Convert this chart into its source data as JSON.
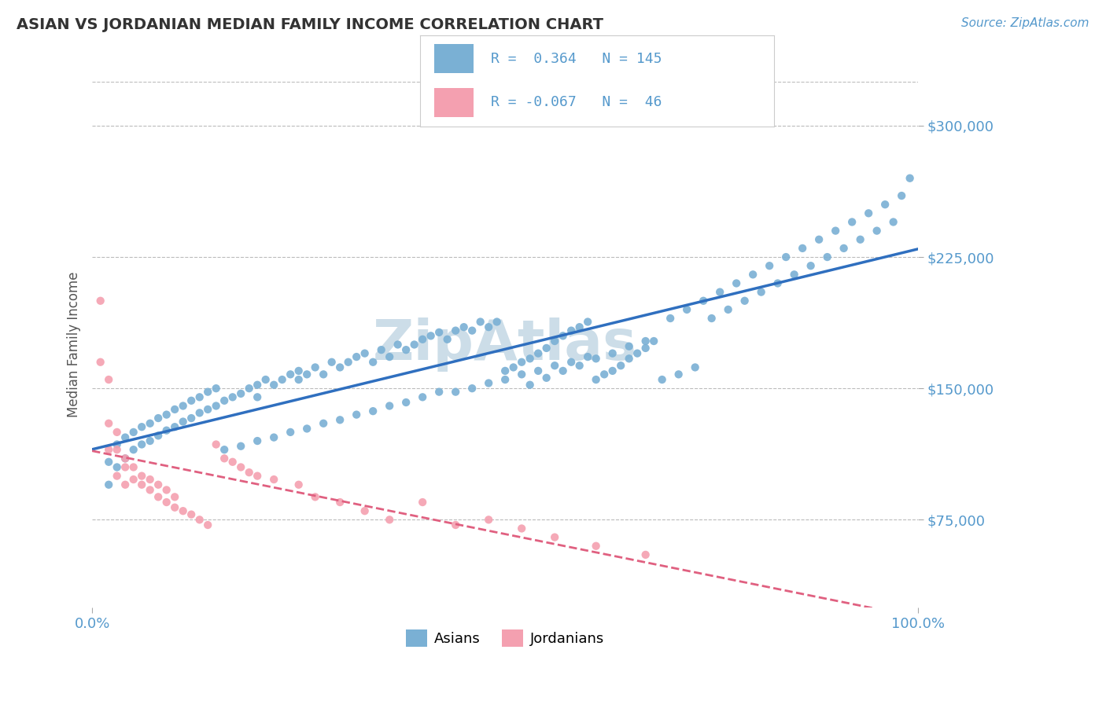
{
  "title": "ASIAN VS JORDANIAN MEDIAN FAMILY INCOME CORRELATION CHART",
  "source_text": "Source: ZipAtlas.com",
  "ylabel": "Median Family Income",
  "xlim": [
    0.0,
    1.0
  ],
  "ylim": [
    25000,
    325000
  ],
  "x_tick_labels": [
    "0.0%",
    "100.0%"
  ],
  "y_tick_labels": [
    "$75,000",
    "$150,000",
    "$225,000",
    "$300,000"
  ],
  "y_tick_values": [
    75000,
    150000,
    225000,
    300000
  ],
  "asian_R": 0.364,
  "asian_N": 145,
  "jordanian_R": -0.067,
  "jordanian_N": 46,
  "asian_color": "#7ab0d4",
  "asian_line_color": "#2f6fbf",
  "jordanian_color": "#f4a0b0",
  "jordanian_line_color": "#e06080",
  "background_color": "#ffffff",
  "grid_color": "#bbbbbb",
  "title_color": "#333333",
  "axis_label_color": "#5599cc",
  "watermark_text": "ZipAtlas",
  "watermark_color": "#ccdde8",
  "asian_scatter_x": [
    0.02,
    0.02,
    0.03,
    0.03,
    0.04,
    0.04,
    0.05,
    0.05,
    0.06,
    0.06,
    0.07,
    0.07,
    0.08,
    0.08,
    0.09,
    0.09,
    0.1,
    0.1,
    0.11,
    0.11,
    0.12,
    0.12,
    0.13,
    0.13,
    0.14,
    0.14,
    0.15,
    0.15,
    0.16,
    0.17,
    0.18,
    0.19,
    0.2,
    0.2,
    0.21,
    0.22,
    0.23,
    0.24,
    0.25,
    0.25,
    0.26,
    0.27,
    0.28,
    0.29,
    0.3,
    0.31,
    0.32,
    0.33,
    0.34,
    0.35,
    0.36,
    0.37,
    0.38,
    0.39,
    0.4,
    0.41,
    0.42,
    0.43,
    0.44,
    0.45,
    0.46,
    0.47,
    0.48,
    0.49,
    0.5,
    0.51,
    0.52,
    0.53,
    0.54,
    0.55,
    0.56,
    0.57,
    0.58,
    0.59,
    0.6,
    0.61,
    0.62,
    0.63,
    0.64,
    0.65,
    0.66,
    0.67,
    0.68,
    0.7,
    0.72,
    0.74,
    0.76,
    0.78,
    0.8,
    0.82,
    0.84,
    0.86,
    0.88,
    0.9,
    0.92,
    0.94,
    0.96,
    0.98,
    0.75,
    0.77,
    0.79,
    0.81,
    0.83,
    0.85,
    0.87,
    0.89,
    0.91,
    0.93,
    0.95,
    0.97,
    0.99,
    0.53,
    0.55,
    0.57,
    0.59,
    0.61,
    0.63,
    0.65,
    0.67,
    0.69,
    0.71,
    0.73,
    0.48,
    0.5,
    0.52,
    0.54,
    0.56,
    0.58,
    0.6,
    0.44,
    0.46,
    0.42,
    0.4,
    0.38,
    0.36,
    0.34,
    0.32,
    0.3,
    0.28,
    0.26,
    0.24,
    0.22,
    0.2,
    0.18,
    0.16
  ],
  "asian_scatter_y": [
    108000,
    95000,
    105000,
    118000,
    110000,
    122000,
    115000,
    125000,
    118000,
    128000,
    120000,
    130000,
    123000,
    133000,
    126000,
    135000,
    128000,
    138000,
    131000,
    140000,
    133000,
    143000,
    136000,
    145000,
    138000,
    148000,
    140000,
    150000,
    143000,
    145000,
    147000,
    150000,
    152000,
    145000,
    155000,
    152000,
    155000,
    158000,
    160000,
    155000,
    158000,
    162000,
    158000,
    165000,
    162000,
    165000,
    168000,
    170000,
    165000,
    172000,
    168000,
    175000,
    172000,
    175000,
    178000,
    180000,
    182000,
    178000,
    183000,
    185000,
    183000,
    188000,
    185000,
    188000,
    160000,
    162000,
    165000,
    167000,
    170000,
    173000,
    177000,
    180000,
    183000,
    185000,
    188000,
    155000,
    158000,
    160000,
    163000,
    167000,
    170000,
    173000,
    177000,
    190000,
    195000,
    200000,
    205000,
    210000,
    215000,
    220000,
    225000,
    230000,
    235000,
    240000,
    245000,
    250000,
    255000,
    260000,
    190000,
    195000,
    200000,
    205000,
    210000,
    215000,
    220000,
    225000,
    230000,
    235000,
    240000,
    245000,
    270000,
    152000,
    156000,
    160000,
    163000,
    167000,
    170000,
    174000,
    177000,
    155000,
    158000,
    162000,
    153000,
    155000,
    158000,
    160000,
    163000,
    165000,
    168000,
    148000,
    150000,
    148000,
    145000,
    142000,
    140000,
    137000,
    135000,
    132000,
    130000,
    127000,
    125000,
    122000,
    120000,
    117000,
    115000
  ],
  "jordanian_scatter_x": [
    0.01,
    0.01,
    0.02,
    0.02,
    0.02,
    0.03,
    0.03,
    0.03,
    0.04,
    0.04,
    0.04,
    0.05,
    0.05,
    0.06,
    0.06,
    0.07,
    0.07,
    0.08,
    0.08,
    0.09,
    0.09,
    0.1,
    0.1,
    0.11,
    0.12,
    0.13,
    0.14,
    0.15,
    0.16,
    0.17,
    0.18,
    0.19,
    0.2,
    0.22,
    0.25,
    0.27,
    0.3,
    0.33,
    0.36,
    0.4,
    0.44,
    0.48,
    0.52,
    0.56,
    0.61,
    0.67
  ],
  "jordanian_scatter_y": [
    200000,
    165000,
    155000,
    130000,
    115000,
    125000,
    115000,
    100000,
    110000,
    105000,
    95000,
    105000,
    98000,
    100000,
    95000,
    98000,
    92000,
    95000,
    88000,
    92000,
    85000,
    88000,
    82000,
    80000,
    78000,
    75000,
    72000,
    118000,
    110000,
    108000,
    105000,
    102000,
    100000,
    98000,
    95000,
    88000,
    85000,
    80000,
    75000,
    85000,
    72000,
    75000,
    70000,
    65000,
    60000,
    55000
  ]
}
